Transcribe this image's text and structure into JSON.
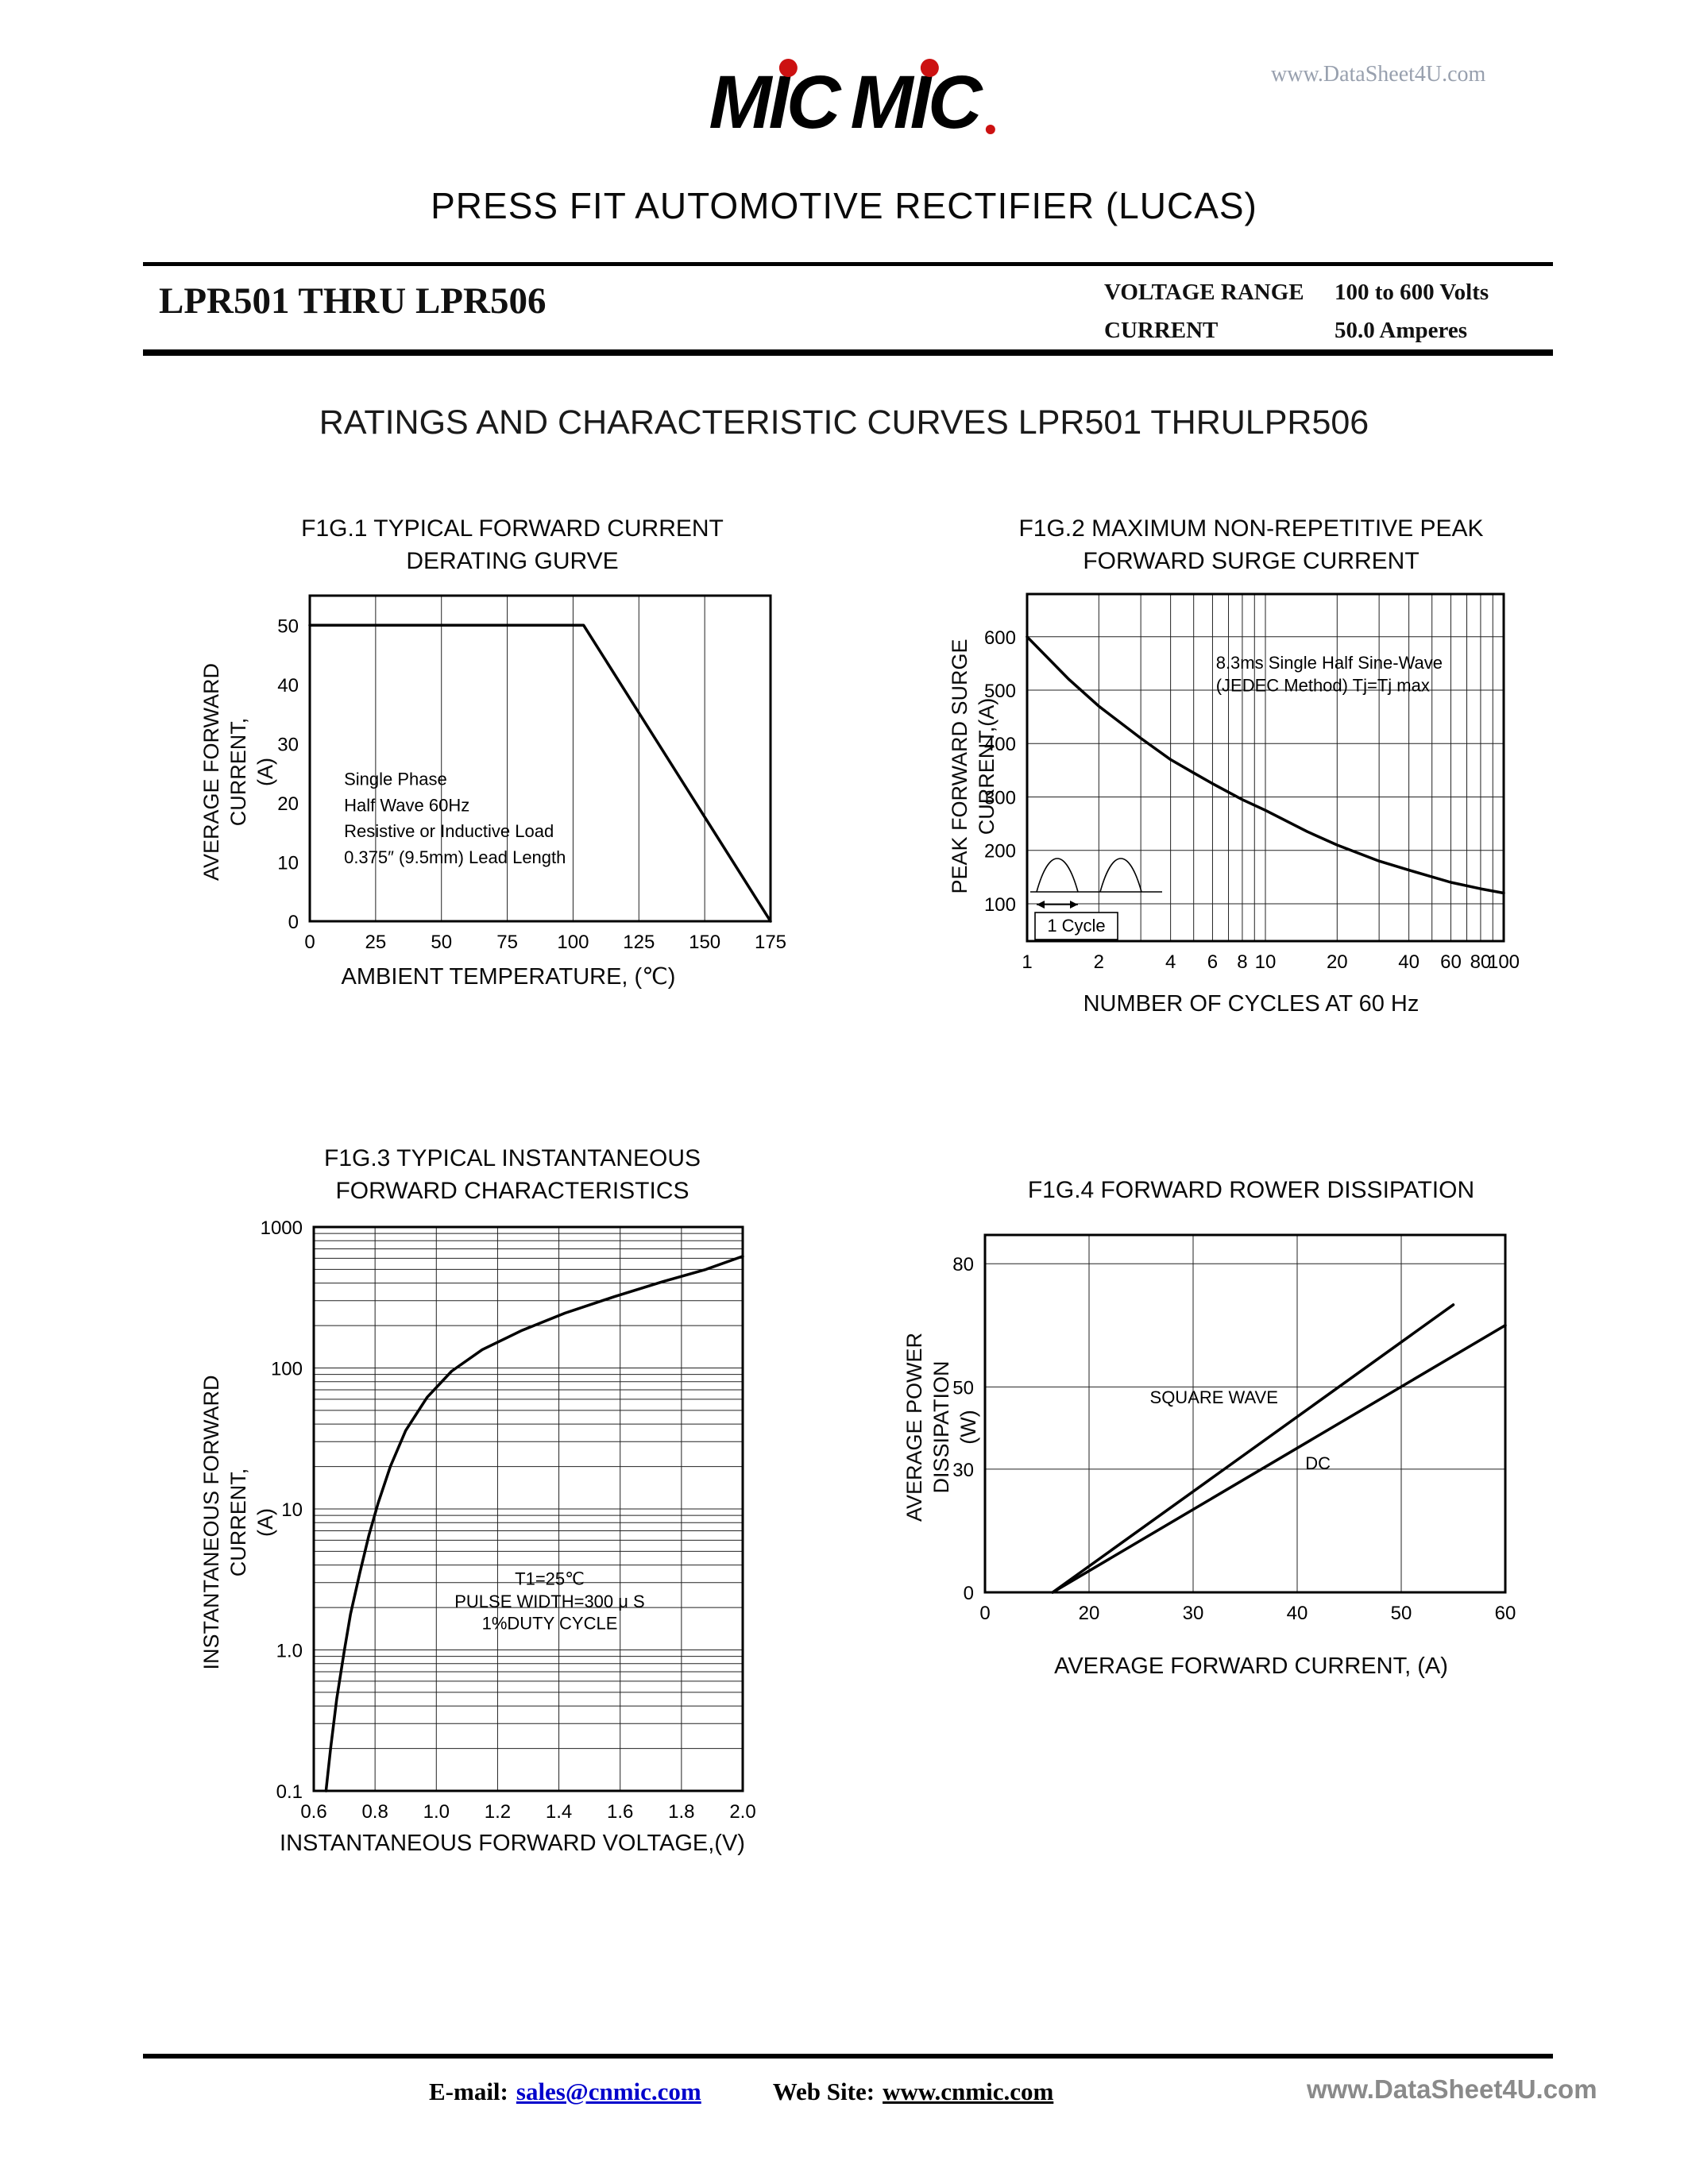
{
  "header": {
    "watermark": "www.DataSheet4U.com",
    "logo": {
      "word1": "MIC",
      "word2": "MIC"
    },
    "title": "PRESS FIT AUTOMOTIVE RECTIFIER (LUCAS)",
    "part_range": "LPR501 THRU LPR506",
    "specs": [
      {
        "label": "VOLTAGE RANGE",
        "value": "100 to 600 Volts"
      },
      {
        "label": "CURRENT",
        "value": "50.0 Amperes"
      }
    ],
    "section_title": "RATINGS AND CHARACTERISTIC CURVES LPR501 THRULPR506"
  },
  "footer": {
    "email_label": "E-mail:",
    "email": "sales@cnmic.com",
    "web_label": "Web Site:",
    "web": "www.cnmic.com",
    "watermark": "www.DataSheet4U.com"
  },
  "chart_data": [
    {
      "id": "fig1",
      "type": "line",
      "title": "F1G.1  TYPICAL FORWARD CURRENT\nDERATING GURVE",
      "xlabel": "AMBIENT TEMPERATURE, (℃)",
      "ylabel": "AVERAGE FORWARD CURRENT,\n(A)",
      "x": {
        "scale": "linear",
        "min": 0,
        "max": 175,
        "ticks": [
          0,
          25,
          50,
          75,
          100,
          125,
          150,
          175
        ]
      },
      "y": {
        "scale": "linear",
        "min": 0,
        "max": 55,
        "ticks": [
          0,
          10,
          20,
          30,
          40,
          50
        ],
        "grid": false
      },
      "series": [
        {
          "name": "derating-curve",
          "points": [
            [
              0,
              50
            ],
            [
              104,
              50
            ],
            [
              175,
              0
            ]
          ]
        }
      ],
      "annotations": [
        {
          "text": "Single Phase",
          "x": 13,
          "y": 23
        },
        {
          "text": "Half Wave 60Hz",
          "x": 13,
          "y": 18.6
        },
        {
          "text": "Resistive or Inductive Load",
          "x": 13,
          "y": 14.2
        },
        {
          "text": "0.375″ (9.5mm) Lead Length",
          "x": 13,
          "y": 9.8
        }
      ]
    },
    {
      "id": "fig2",
      "type": "line",
      "title": "F1G.2  MAXIMUM NON-REPETITIVE PEAK\nFORWARD SURGE CURRENT",
      "xlabel": "NUMBER OF CYCLES AT 60 Hz",
      "ylabel": "PEAK FORWARD SURGE\nCURRENT,(A)",
      "x": {
        "scale": "log",
        "min": 1,
        "max": 100,
        "ticks": [
          1,
          2,
          4,
          6,
          8,
          10,
          20,
          40,
          60,
          80,
          100
        ]
      },
      "y": {
        "scale": "linear",
        "min": 30,
        "max": 680,
        "ticks": [
          100,
          200,
          300,
          400,
          500,
          600
        ],
        "gridvalues": [
          100,
          200,
          300,
          400,
          500,
          600
        ]
      },
      "series": [
        {
          "name": "surge-current",
          "points": [
            [
              1,
              600
            ],
            [
              1.5,
              520
            ],
            [
              2,
              470
            ],
            [
              3,
              410
            ],
            [
              4,
              370
            ],
            [
              5,
              345
            ],
            [
              6,
              325
            ],
            [
              8,
              295
            ],
            [
              10,
              275
            ],
            [
              15,
              235
            ],
            [
              20,
              210
            ],
            [
              30,
              180
            ],
            [
              40,
              163
            ],
            [
              60,
              140
            ],
            [
              80,
              128
            ],
            [
              100,
              120
            ]
          ]
        }
      ],
      "annotations": [
        {
          "text": "8.3ms Single Half Sine-Wave",
          "x": 6.2,
          "y": 540
        },
        {
          "text": "(JEDEC Method) Tj=Tj max",
          "x": 6.2,
          "y": 498
        }
      ],
      "decor": "half-sine-cycles",
      "cycle_label": "1 Cycle"
    },
    {
      "id": "fig3",
      "type": "line",
      "title": "F1G.3  TYPICAL INSTANTANEOUS\nFORWARD CHARACTERISTICS",
      "xlabel": "INSTANTANEOUS FORWARD VOLTAGE,(V)",
      "ylabel": "INSTANTANEOUS FORWARD CURRENT,\n(A)",
      "x": {
        "scale": "linear",
        "min": 0.6,
        "max": 2.0,
        "ticks": [
          0.6,
          0.8,
          1.0,
          1.2,
          1.4,
          1.6,
          1.8,
          2.0
        ],
        "ticklabels": [
          "0.6",
          "0.8",
          "1.0",
          "1.2",
          "1.4",
          "1.6",
          "1.8",
          "2.0"
        ]
      },
      "y": {
        "scale": "log",
        "min": 0.1,
        "max": 1000,
        "ticks": [
          0.1,
          1,
          10,
          100,
          1000
        ],
        "ticklabels": [
          "0.1",
          "1.0",
          "10",
          "100",
          "1000"
        ]
      },
      "series": [
        {
          "name": "forward-characteristic",
          "points": [
            [
              0.64,
              0.1
            ],
            [
              0.655,
              0.2
            ],
            [
              0.675,
              0.45
            ],
            [
              0.7,
              1.0
            ],
            [
              0.72,
              1.8
            ],
            [
              0.75,
              3.5
            ],
            [
              0.78,
              6.5
            ],
            [
              0.81,
              11
            ],
            [
              0.85,
              20
            ],
            [
              0.9,
              36
            ],
            [
              0.97,
              62
            ],
            [
              1.05,
              95
            ],
            [
              1.15,
              135
            ],
            [
              1.28,
              185
            ],
            [
              1.42,
              245
            ],
            [
              1.58,
              320
            ],
            [
              1.74,
              410
            ],
            [
              1.88,
              500
            ],
            [
              2.0,
              620
            ]
          ]
        }
      ],
      "annotations": [
        {
          "text": "T1=25℃",
          "x": 1.37,
          "y": 2.9,
          "anchor": "middle"
        },
        {
          "text": "PULSE WIDTH=300 μ S",
          "x": 1.37,
          "y": 2.0,
          "anchor": "middle"
        },
        {
          "text": "1%DUTY CYCLE",
          "x": 1.37,
          "y": 1.4,
          "anchor": "middle"
        }
      ]
    },
    {
      "id": "fig4",
      "type": "line",
      "title": "F1G.4  FORWARD ROWER DISSIPATION",
      "xlabel": "AVERAGE FORWARD CURRENT, (A)",
      "ylabel": "AVERAGE POWER DISSIPATION\n(W)",
      "x": {
        "scale": "tickindex",
        "ticks": [
          0,
          20,
          30,
          40,
          50,
          60
        ],
        "gridvalues": [
          20,
          30,
          40,
          50,
          60
        ]
      },
      "y": {
        "scale": "linear",
        "min": 0,
        "max": 87,
        "ticks": [
          0,
          30,
          50,
          80
        ],
        "gridvalues": [
          30,
          50,
          80
        ]
      },
      "series": [
        {
          "name": "square-wave",
          "points": [
            [
              13,
              0
            ],
            [
              55,
              70
            ]
          ]
        },
        {
          "name": "dc",
          "points": [
            [
              13,
              0
            ],
            [
              60,
              65
            ]
          ]
        }
      ],
      "annotations": [
        {
          "text": "SQUARE WAVE",
          "x": 32,
          "y": 46,
          "anchor": "middle"
        },
        {
          "text": "DC",
          "x": 42,
          "y": 30,
          "anchor": "middle"
        }
      ]
    }
  ]
}
